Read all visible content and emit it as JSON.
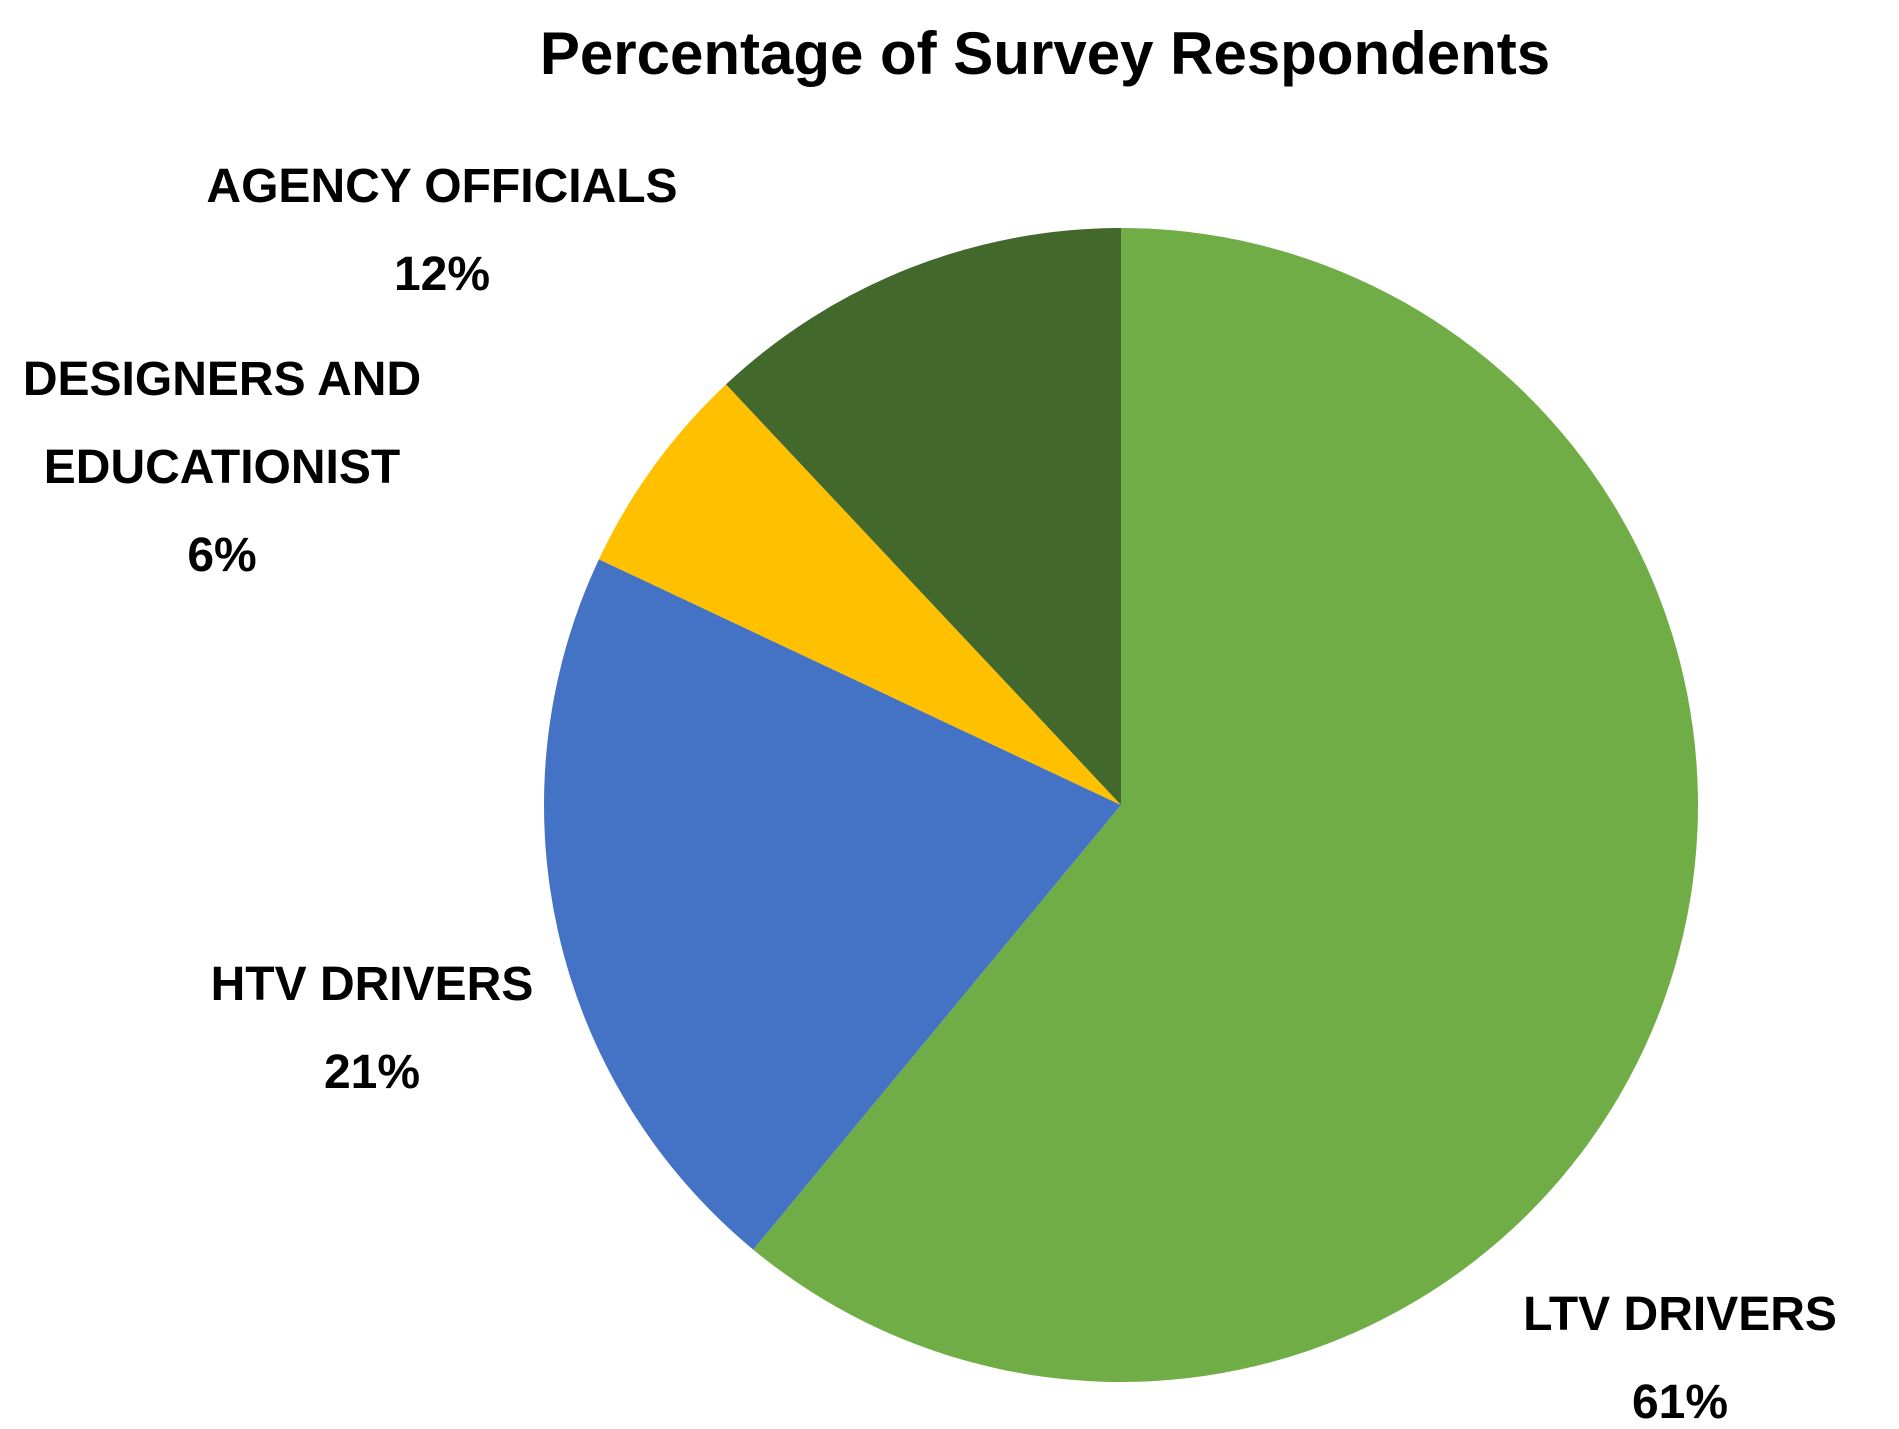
{
  "chart_data": {
    "type": "pie",
    "title": "Percentage of Survey Respondents",
    "slices": [
      {
        "label_lines": [
          "LTV DRIVERS"
        ],
        "value": 61,
        "value_label": "61%",
        "color": "#70AD47"
      },
      {
        "label_lines": [
          "HTV DRIVERS"
        ],
        "value": 21,
        "value_label": "21%",
        "color": "#4472C4"
      },
      {
        "label_lines": [
          "DESIGNERS AND",
          "EDUCATIONIST"
        ],
        "value": 6,
        "value_label": "6%",
        "color": "#FFC000"
      },
      {
        "label_lines": [
          "AGENCY OFFICIALS"
        ],
        "value": 12,
        "value_label": "12%",
        "color": "#43682B"
      }
    ],
    "start_angle": "12 o'clock",
    "direction": "clockwise",
    "legend": "none"
  }
}
